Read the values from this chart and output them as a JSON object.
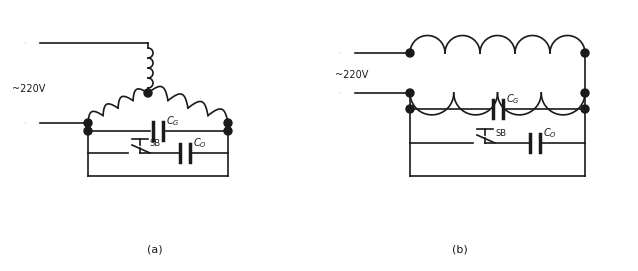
{
  "line_color": "#1a1a1a",
  "lw": 1.2,
  "lw_plate": 2.5,
  "label_a": "(a)",
  "label_b": "(b)",
  "voltage_label": "~220V"
}
